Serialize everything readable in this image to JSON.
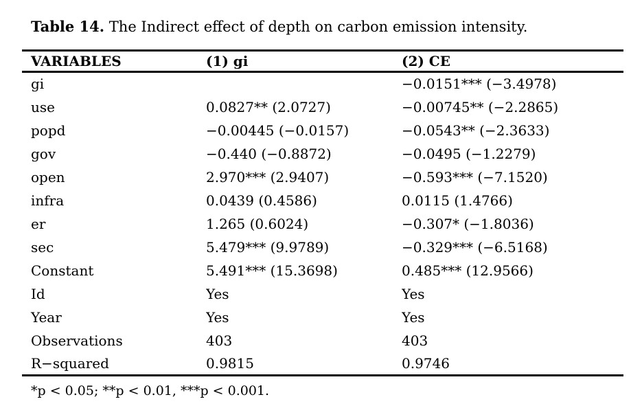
{
  "title": {
    "label": "Table 14.",
    "text": "The Indirect effect of depth on carbon emission intensity."
  },
  "table": {
    "columns": [
      "VARIABLES",
      "(1) gi",
      "(2) CE"
    ],
    "rows": [
      {
        "variable": "gi",
        "col1": "",
        "col2": "−0.0151*** (−3.4978)"
      },
      {
        "variable": "use",
        "col1": "0.0827** (2.0727)",
        "col2": "−0.00745** (−2.2865)"
      },
      {
        "variable": "popd",
        "col1": "−0.00445 (−0.0157)",
        "col2": "−0.0543** (−2.3633)"
      },
      {
        "variable": "gov",
        "col1": "−0.440 (−0.8872)",
        "col2": "−0.0495 (−1.2279)"
      },
      {
        "variable": "open",
        "col1": "2.970*** (2.9407)",
        "col2": "−0.593*** (−7.1520)"
      },
      {
        "variable": "infra",
        "col1": "0.0439 (0.4586)",
        "col2": "0.0115 (1.4766)"
      },
      {
        "variable": "er",
        "col1": "1.265 (0.6024)",
        "col2": "−0.307* (−1.8036)"
      },
      {
        "variable": "sec",
        "col1": "5.479*** (9.9789)",
        "col2": "−0.329*** (−6.5168)"
      },
      {
        "variable": "Constant",
        "col1": "5.491*** (15.3698)",
        "col2": "0.485*** (12.9566)"
      },
      {
        "variable": "Id",
        "col1": "Yes",
        "col2": "Yes"
      },
      {
        "variable": "Year",
        "col1": "Yes",
        "col2": "Yes"
      },
      {
        "variable": "Observations",
        "col1": "403",
        "col2": "403"
      },
      {
        "variable": "R−squared",
        "col1": "0.9815",
        "col2": "0.9746"
      }
    ],
    "footnote": "*p < 0.05; **p < 0.01, ***p < 0.001."
  }
}
